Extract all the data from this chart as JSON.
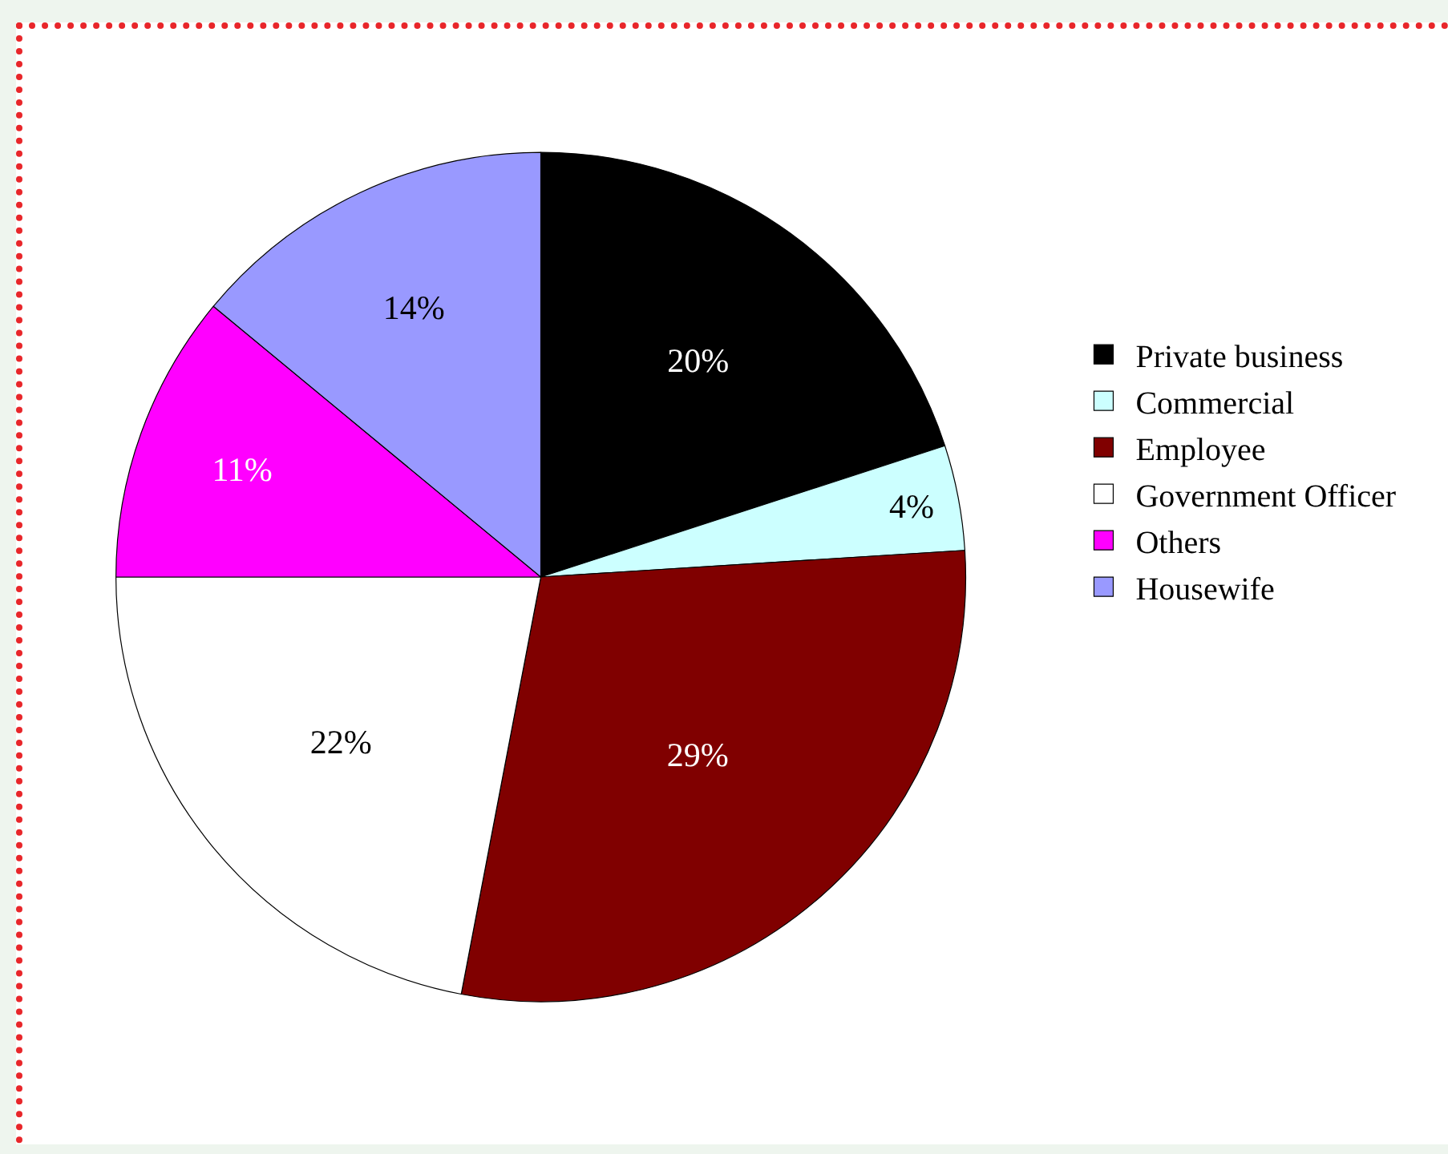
{
  "chart_data": {
    "type": "pie",
    "categories": [
      "Private business",
      "Commercial",
      "Employee",
      "Government Officer",
      "Others",
      "Housewife"
    ],
    "values": [
      20,
      4,
      29,
      22,
      11,
      14
    ],
    "value_labels": [
      "20%",
      "4%",
      "29%",
      "22%",
      "11%",
      "14%"
    ],
    "colors": [
      "#000000",
      "#ccffff",
      "#800000",
      "#ffffff",
      "#ff00ff",
      "#9999ff"
    ],
    "legend": "right"
  }
}
